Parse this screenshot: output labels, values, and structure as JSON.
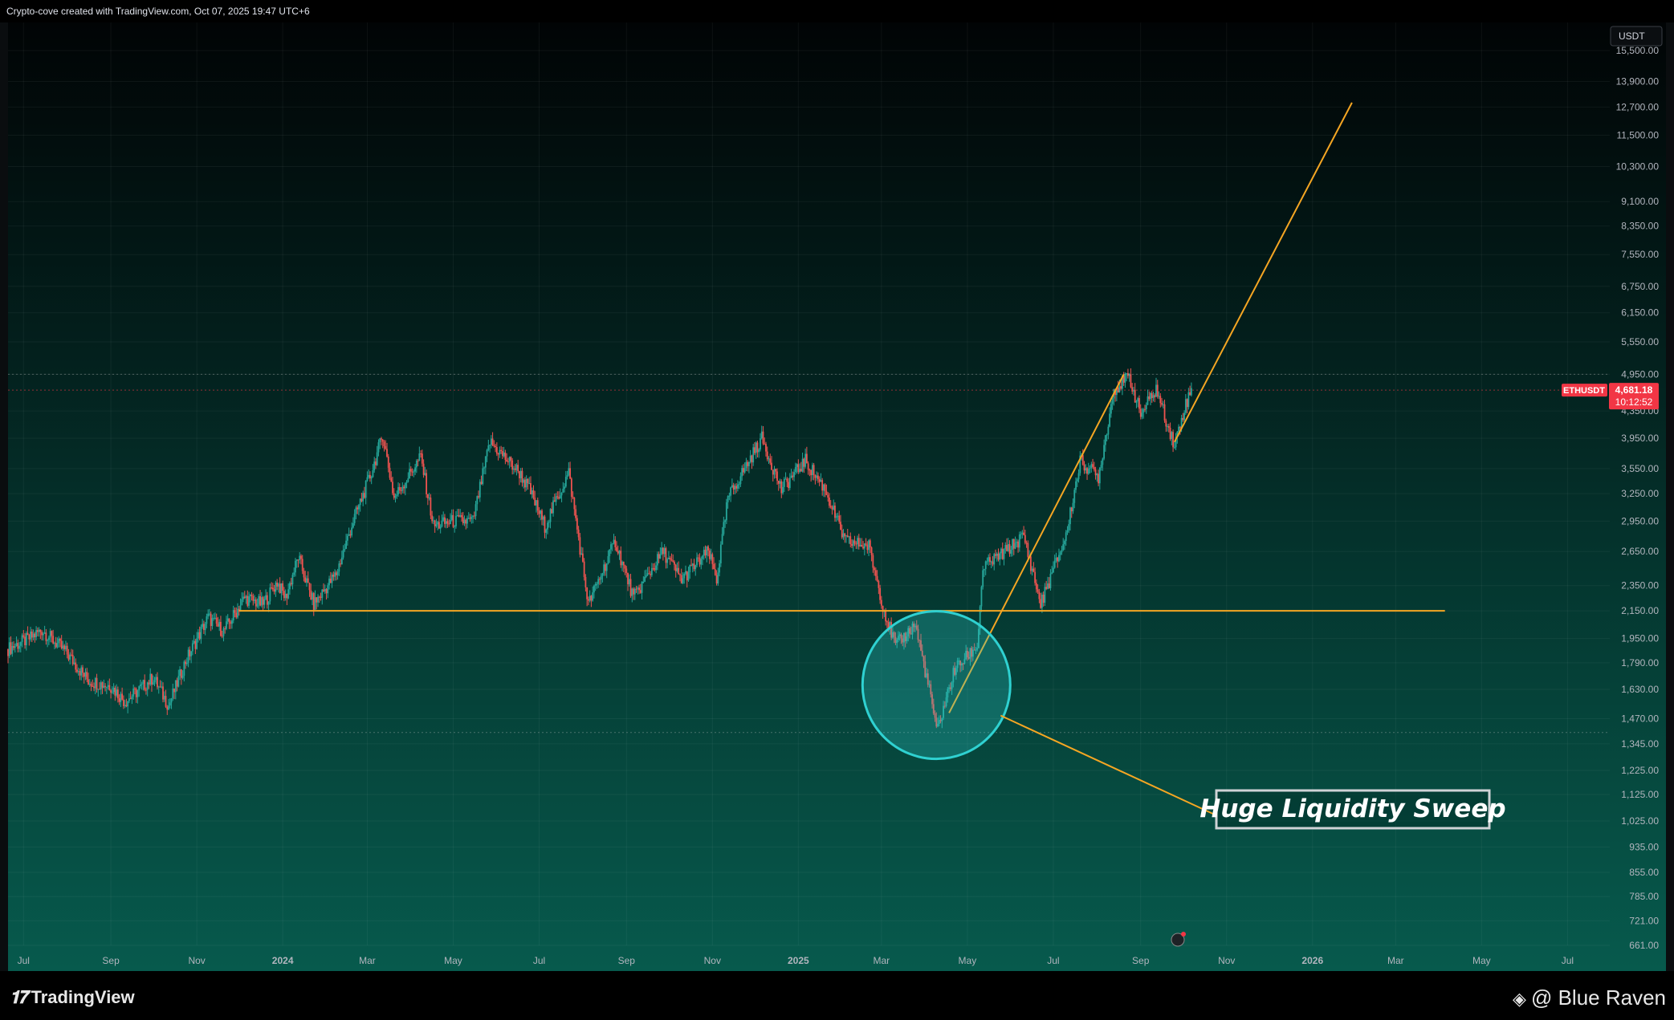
{
  "header": {
    "credit": "Crypto-cove created with TradingView.com, Oct 07, 2025 19:47 UTC+6"
  },
  "footer": {
    "brand": "TradingView",
    "author": "@ Blue Raven"
  },
  "colors": {
    "up": "#26a69a",
    "down": "#ef5350",
    "line": "#f5a623",
    "circle": "#2fd1d1",
    "price_tag": "#f23645"
  },
  "chart_data": {
    "type": "candlestick",
    "symbol_tag": "ETHUSDT",
    "last_price": "4,681.18",
    "countdown": "10:12:52",
    "currency": "USDT",
    "y_scale": "log",
    "ylim": [
      661,
      15500
    ],
    "x_range": [
      "2023-06-20",
      "2026-07-31"
    ],
    "y_ticks": [
      "15,500.00",
      "13,900.00",
      "12,700.00",
      "11,500.00",
      "10,300.00",
      "9,100.00",
      "8,350.00",
      "7,550.00",
      "6,750.00",
      "6,150.00",
      "5,550.00",
      "4,950.00",
      "4,350.00",
      "3,950.00",
      "3,550.00",
      "3,250.00",
      "2,950.00",
      "2,650.00",
      "2,350.00",
      "2,150.00",
      "1,950.00",
      "1,790.00",
      "1,630.00",
      "1,470.00",
      "1,345.00",
      "1,225.00",
      "1,125.00",
      "1,025.00",
      "935.00",
      "855.00",
      "785.00",
      "721.00",
      "661.00"
    ],
    "x_ticks": [
      {
        "label": "Jul",
        "date": "2023-07-01",
        "bold": false
      },
      {
        "label": "Sep",
        "date": "2023-09-01",
        "bold": false
      },
      {
        "label": "Nov",
        "date": "2023-11-01",
        "bold": false
      },
      {
        "label": "2024",
        "date": "2024-01-01",
        "bold": true
      },
      {
        "label": "Mar",
        "date": "2024-03-01",
        "bold": false
      },
      {
        "label": "May",
        "date": "2024-05-01",
        "bold": false
      },
      {
        "label": "Jul",
        "date": "2024-07-01",
        "bold": false
      },
      {
        "label": "Sep",
        "date": "2024-09-01",
        "bold": false
      },
      {
        "label": "Nov",
        "date": "2024-11-01",
        "bold": false
      },
      {
        "label": "2025",
        "date": "2025-01-01",
        "bold": true
      },
      {
        "label": "Mar",
        "date": "2025-03-01",
        "bold": false
      },
      {
        "label": "May",
        "date": "2025-05-01",
        "bold": false
      },
      {
        "label": "Jul",
        "date": "2025-07-01",
        "bold": false
      },
      {
        "label": "Sep",
        "date": "2025-09-01",
        "bold": false
      },
      {
        "label": "Nov",
        "date": "2025-11-01",
        "bold": false
      },
      {
        "label": "2026",
        "date": "2026-01-01",
        "bold": true
      },
      {
        "label": "Mar",
        "date": "2026-03-01",
        "bold": false
      },
      {
        "label": "May",
        "date": "2026-05-01",
        "bold": false
      },
      {
        "label": "Jul",
        "date": "2026-07-01",
        "bold": false
      }
    ],
    "price_path": [
      [
        "2023-06-20",
        1880
      ],
      [
        "2023-07-05",
        1950
      ],
      [
        "2023-07-14",
        2010
      ],
      [
        "2023-07-31",
        1860
      ],
      [
        "2023-08-16",
        1680
      ],
      [
        "2023-09-01",
        1650
      ],
      [
        "2023-09-11",
        1560
      ],
      [
        "2023-10-01",
        1700
      ],
      [
        "2023-10-12",
        1540
      ],
      [
        "2023-10-24",
        1800
      ],
      [
        "2023-11-09",
        2100
      ],
      [
        "2023-11-20",
        2000
      ],
      [
        "2023-12-05",
        2250
      ],
      [
        "2023-12-18",
        2200
      ],
      [
        "2023-12-28",
        2380
      ],
      [
        "2024-01-03",
        2250
      ],
      [
        "2024-01-12",
        2600
      ],
      [
        "2024-01-23",
        2200
      ],
      [
        "2024-02-08",
        2450
      ],
      [
        "2024-02-20",
        2950
      ],
      [
        "2024-03-04",
        3500
      ],
      [
        "2024-03-12",
        4000
      ],
      [
        "2024-03-20",
        3200
      ],
      [
        "2024-04-08",
        3700
      ],
      [
        "2024-04-17",
        2900
      ],
      [
        "2024-05-01",
        2950
      ],
      [
        "2024-05-15",
        2950
      ],
      [
        "2024-05-27",
        3900
      ],
      [
        "2024-06-17",
        3500
      ],
      [
        "2024-06-24",
        3300
      ],
      [
        "2024-07-05",
        2900
      ],
      [
        "2024-07-22",
        3500
      ],
      [
        "2024-08-05",
        2200
      ],
      [
        "2024-08-24",
        2750
      ],
      [
        "2024-09-06",
        2250
      ],
      [
        "2024-09-27",
        2650
      ],
      [
        "2024-10-10",
        2400
      ],
      [
        "2024-10-29",
        2650
      ],
      [
        "2024-11-04",
        2400
      ],
      [
        "2024-11-12",
        3200
      ],
      [
        "2024-12-06",
        3950
      ],
      [
        "2024-12-20",
        3300
      ],
      [
        "2025-01-06",
        3650
      ],
      [
        "2025-01-20",
        3300
      ],
      [
        "2025-02-03",
        2750
      ],
      [
        "2025-02-20",
        2700
      ],
      [
        "2025-03-03",
        2150
      ],
      [
        "2025-03-11",
        1900
      ],
      [
        "2025-03-25",
        2050
      ],
      [
        "2025-04-06",
        1550
      ],
      [
        "2025-04-09",
        1400
      ],
      [
        "2025-04-22",
        1750
      ],
      [
        "2025-05-08",
        1900
      ],
      [
        "2025-05-12",
        2500
      ],
      [
        "2025-05-28",
        2650
      ],
      [
        "2025-06-10",
        2800
      ],
      [
        "2025-06-22",
        2200
      ],
      [
        "2025-07-10",
        2800
      ],
      [
        "2025-07-20",
        3650
      ],
      [
        "2025-08-02",
        3450
      ],
      [
        "2025-08-13",
        4700
      ],
      [
        "2025-08-24",
        4900
      ],
      [
        "2025-09-01",
        4300
      ],
      [
        "2025-09-12",
        4700
      ],
      [
        "2025-09-25",
        3850
      ],
      [
        "2025-10-02",
        4400
      ],
      [
        "2025-10-07",
        4681
      ]
    ],
    "horizontal_levels": [
      {
        "price": 2150,
        "from": "2023-12-01",
        "to": "2026-04-05"
      }
    ],
    "trend_lines": [
      {
        "from": [
          "2025-04-18",
          1500
        ],
        "to": [
          "2025-08-20",
          4950
        ]
      },
      {
        "from": [
          "2025-09-25",
          3900
        ],
        "to": [
          "2026-01-29",
          12900
        ]
      }
    ],
    "dotted_levels": [
      4950,
      4681,
      1400
    ],
    "sweep_zone": {
      "center": [
        "2025-04-09",
        1655
      ]
    },
    "annotations": [
      {
        "text": "Huge Liquidity Sweep"
      }
    ]
  }
}
